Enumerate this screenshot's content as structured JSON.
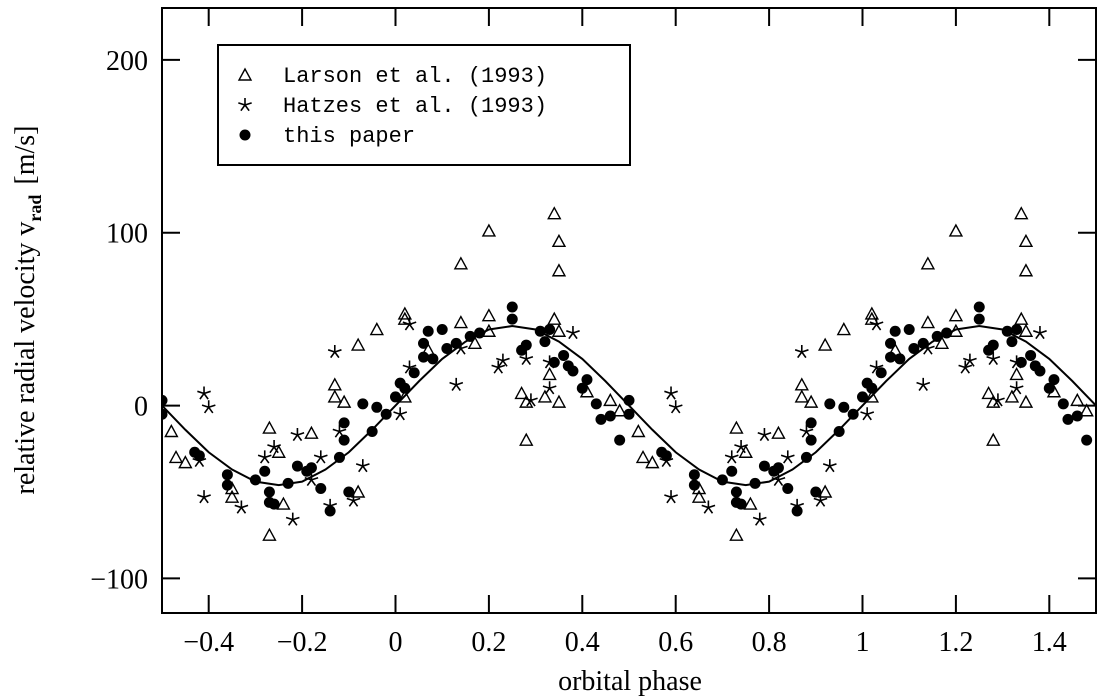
{
  "chart_data": {
    "type": "scatter",
    "xlabel": "orbital phase",
    "ylabel": "relative radial velocity v",
    "ylabel_sub": "rad",
    "ylabel_unit": "[m/s]",
    "xlim": [
      -0.5,
      1.5
    ],
    "ylim": [
      -120,
      230
    ],
    "xticks": [
      {
        "value": -0.4,
        "label": "−0.4"
      },
      {
        "value": -0.2,
        "label": "−0.2"
      },
      0,
      0.2,
      0.4,
      0.6,
      0.8,
      1,
      1.2,
      1.4
    ],
    "yticks": [
      {
        "value": -100,
        "label": "−100"
      },
      0,
      100,
      200
    ],
    "legend": "upper left",
    "series": [
      {
        "name": "Larson et al. (1993)",
        "marker": "triangle",
        "color": "#000000",
        "x": [
          -0.48,
          -0.47,
          -0.45,
          -0.35,
          -0.35,
          -0.27,
          -0.27,
          -0.25,
          -0.24,
          -0.18,
          -0.13,
          -0.13,
          -0.11,
          -0.08,
          -0.08,
          -0.04,
          0.02,
          0.02,
          0.02,
          0.07,
          0.14,
          0.14,
          0.17,
          0.2,
          0.2,
          0.2,
          0.27,
          0.28,
          0.28,
          0.32,
          0.33,
          0.34,
          0.34,
          0.35,
          0.35,
          0.35,
          0.35,
          0.41,
          0.46,
          0.48,
          0.52,
          0.53,
          0.55,
          0.65,
          0.65,
          0.73,
          0.73,
          0.75,
          0.76,
          0.82,
          0.87,
          0.87,
          0.89,
          0.92,
          0.92,
          0.96,
          1.02,
          1.02,
          1.02,
          1.07,
          1.14,
          1.14,
          1.17,
          1.2,
          1.2,
          1.2,
          1.27,
          1.28,
          1.28,
          1.32,
          1.33,
          1.34,
          1.34,
          1.35,
          1.35,
          1.35,
          1.35,
          1.41,
          1.46,
          1.48
        ],
        "values": [
          -15,
          -30,
          -33,
          -48,
          -53,
          -13,
          -75,
          -27,
          -57,
          -16,
          12,
          5,
          2,
          35,
          -50,
          44,
          53,
          50,
          5,
          32,
          82,
          48,
          36,
          101,
          52,
          43,
          7,
          -20,
          2,
          5,
          18,
          111,
          50,
          95,
          78,
          43,
          2,
          8,
          3,
          -3,
          -15,
          -30,
          -33,
          -48,
          -53,
          -13,
          -75,
          -27,
          -57,
          -16,
          12,
          5,
          2,
          35,
          -50,
          44,
          53,
          50,
          5,
          32,
          82,
          48,
          36,
          101,
          52,
          43,
          7,
          -20,
          2,
          5,
          18,
          111,
          50,
          95,
          78,
          43,
          2,
          8,
          3,
          -3
        ]
      },
      {
        "name": "Hatzes et al. (1993)",
        "marker": "star",
        "color": "#000000",
        "x": [
          -0.41,
          -0.41,
          -0.4,
          -0.42,
          -0.33,
          -0.28,
          -0.26,
          -0.22,
          -0.21,
          -0.18,
          -0.16,
          -0.14,
          -0.13,
          -0.12,
          -0.09,
          -0.07,
          0.01,
          0.03,
          0.03,
          0.13,
          0.14,
          0.22,
          0.23,
          0.28,
          0.29,
          0.33,
          0.33,
          0.38,
          0.59,
          0.59,
          0.6,
          0.58,
          0.67,
          0.72,
          0.74,
          0.78,
          0.79,
          0.82,
          0.84,
          0.86,
          0.87,
          0.88,
          0.91,
          0.93,
          1.01,
          1.03,
          1.03,
          1.13,
          1.14,
          1.22,
          1.23,
          1.28,
          1.29,
          1.33,
          1.33,
          1.38
        ],
        "values": [
          -53,
          7,
          -1,
          -32,
          -59,
          -30,
          -24,
          -66,
          -17,
          -43,
          -30,
          -58,
          31,
          -15,
          -55,
          -35,
          -5,
          22,
          47,
          12,
          33,
          22,
          26,
          27,
          3,
          10,
          25,
          42,
          -53,
          7,
          -1,
          -32,
          -59,
          -30,
          -24,
          -66,
          -17,
          -43,
          -30,
          -58,
          31,
          -15,
          -55,
          -35,
          -5,
          22,
          47,
          12,
          33,
          22,
          26,
          27,
          3,
          10,
          25,
          42
        ]
      },
      {
        "name": "this paper",
        "marker": "dot",
        "color": "#000000",
        "x": [
          -0.5,
          -0.5,
          -0.43,
          -0.42,
          -0.36,
          -0.36,
          -0.3,
          -0.28,
          -0.27,
          -0.27,
          -0.26,
          -0.23,
          -0.21,
          -0.19,
          -0.18,
          -0.16,
          -0.14,
          -0.12,
          -0.11,
          -0.11,
          -0.1,
          -0.07,
          -0.05,
          -0.04,
          -0.02,
          0,
          0.01,
          0.02,
          0.04,
          0.06,
          0.06,
          0.07,
          0.08,
          0.1,
          0.11,
          0.13,
          0.16,
          0.18,
          0.25,
          0.25,
          0.27,
          0.28,
          0.31,
          0.32,
          0.33,
          0.34,
          0.36,
          0.37,
          0.38,
          0.4,
          0.41,
          0.43,
          0.44,
          0.46,
          0.48,
          0.5,
          0.5,
          0.57,
          0.58,
          0.64,
          0.64,
          0.7,
          0.72,
          0.73,
          0.73,
          0.74,
          0.77,
          0.79,
          0.81,
          0.82,
          0.84,
          0.86,
          0.88,
          0.89,
          0.89,
          0.9,
          0.93,
          0.95,
          0.96,
          0.98,
          1,
          1.01,
          1.02,
          1.04,
          1.06,
          1.06,
          1.07,
          1.08,
          1.1,
          1.11,
          1.13,
          1.16,
          1.18,
          1.25,
          1.25,
          1.27,
          1.28,
          1.31,
          1.32,
          1.33,
          1.34,
          1.36,
          1.37,
          1.38,
          1.4,
          1.41,
          1.43,
          1.44,
          1.46,
          1.48
        ],
        "values": [
          -5,
          3,
          -27,
          -29,
          -40,
          -46,
          -43,
          -38,
          -50,
          -56,
          -57,
          -45,
          -35,
          -38,
          -36,
          -48,
          -61,
          -30,
          -20,
          -10,
          -50,
          1,
          -15,
          -1,
          -5,
          5,
          13,
          10,
          19,
          28,
          36,
          43,
          27,
          44,
          33,
          36,
          40,
          42,
          57,
          50,
          32,
          35,
          43,
          37,
          44,
          25,
          29,
          23,
          20,
          10,
          15,
          1,
          -8,
          -6,
          -20,
          -5,
          3,
          -27,
          -29,
          -40,
          -46,
          -43,
          -38,
          -50,
          -56,
          -57,
          -45,
          -35,
          -38,
          -36,
          -48,
          -61,
          -30,
          -20,
          -10,
          -50,
          1,
          -15,
          -1,
          -5,
          5,
          13,
          10,
          19,
          28,
          36,
          43,
          27,
          44,
          33,
          36,
          40,
          42,
          57,
          50,
          32,
          35,
          43,
          37,
          44,
          25,
          29,
          23,
          20,
          10,
          15,
          1,
          -8,
          -6,
          -20
        ]
      },
      {
        "marker": "line",
        "color": "#000000",
        "x": [
          -0.5,
          -0.45,
          -0.4,
          -0.35,
          -0.3,
          -0.25,
          -0.2,
          -0.15,
          -0.1,
          -0.05,
          0,
          0.05,
          0.1,
          0.15,
          0.2,
          0.25,
          0.3,
          0.35,
          0.4,
          0.45,
          0.5,
          0.55,
          0.6,
          0.65,
          0.7,
          0.75,
          0.8,
          0.85,
          0.9,
          0.95,
          1,
          1.05,
          1.1,
          1.15,
          1.2,
          1.25,
          1.3,
          1.35,
          1.4,
          1.45,
          1.5
        ],
        "values": [
          0,
          -14,
          -27,
          -37,
          -44,
          -46,
          -44,
          -37,
          -27,
          -14,
          0,
          14,
          27,
          37,
          44,
          46,
          44,
          37,
          27,
          14,
          0,
          -14,
          -27,
          -37,
          -44,
          -46,
          -44,
          -37,
          -27,
          -14,
          0,
          14,
          27,
          37,
          44,
          46,
          44,
          37,
          27,
          14,
          0
        ]
      }
    ]
  }
}
